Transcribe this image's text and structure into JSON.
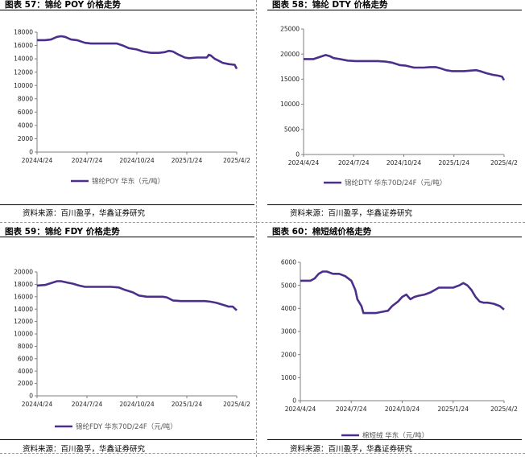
{
  "colors": {
    "series": "#4b2f8a",
    "axis": "#7f7f7f"
  },
  "source_text": "资料来源：百川盈孚，华鑫证券研究",
  "chart_data": [
    {
      "type": "line",
      "title": "图表 57：锦纶 POY 价格走势",
      "series_name": "锦纶POY 华东（元/吨）",
      "x_ticks": [
        "2024/4/24",
        "2024/7/24",
        "2024/10/24",
        "2025/1/24",
        "2025/4/2"
      ],
      "ylim": [
        0,
        18000
      ],
      "y_ticks": [
        0,
        2000,
        4000,
        6000,
        8000,
        10000,
        12000,
        14000,
        16000,
        18000
      ],
      "x": [
        0,
        0.04,
        0.07,
        0.1,
        0.12,
        0.14,
        0.17,
        0.2,
        0.24,
        0.27,
        0.3,
        0.33,
        0.36,
        0.4,
        0.43,
        0.46,
        0.5,
        0.53,
        0.57,
        0.61,
        0.64,
        0.66,
        0.68,
        0.71,
        0.74,
        0.76,
        0.8,
        0.83,
        0.85,
        0.86,
        0.87,
        0.89,
        0.91,
        0.93,
        0.96,
        0.99,
        1.0
      ],
      "values": [
        16800,
        16800,
        16900,
        17300,
        17400,
        17300,
        16900,
        16800,
        16400,
        16300,
        16300,
        16300,
        16300,
        16300,
        16000,
        15600,
        15400,
        15100,
        14900,
        14900,
        15000,
        15200,
        15100,
        14600,
        14200,
        14100,
        14200,
        14200,
        14200,
        14600,
        14500,
        14000,
        13700,
        13400,
        13200,
        13100,
        12500
      ]
    },
    {
      "type": "line",
      "title": "图表 58：锦纶 DTY 价格走势",
      "series_name": "锦纶DTY 华东70D/24F（元/吨）",
      "x_ticks": [
        "2024/4/24",
        "2024/7/24",
        "2024/10/24",
        "2025/1/24",
        "2025/4/2"
      ],
      "ylim": [
        0,
        25000
      ],
      "y_ticks": [
        0,
        5000,
        10000,
        15000,
        20000,
        25000
      ],
      "x": [
        0,
        0.05,
        0.08,
        0.11,
        0.13,
        0.15,
        0.18,
        0.22,
        0.26,
        0.3,
        0.34,
        0.37,
        0.41,
        0.44,
        0.48,
        0.51,
        0.55,
        0.6,
        0.63,
        0.66,
        0.68,
        0.71,
        0.74,
        0.77,
        0.8,
        0.83,
        0.86,
        0.88,
        0.91,
        0.94,
        0.97,
        0.99,
        1.0
      ],
      "values": [
        19000,
        19000,
        19400,
        19800,
        19600,
        19200,
        19000,
        18700,
        18600,
        18600,
        18600,
        18600,
        18500,
        18300,
        17800,
        17700,
        17300,
        17300,
        17400,
        17400,
        17200,
        16800,
        16600,
        16600,
        16600,
        16700,
        16800,
        16600,
        16200,
        15900,
        15700,
        15500,
        14800
      ]
    },
    {
      "type": "line",
      "title": "图表 59：锦纶 FDY 价格走势",
      "series_name": "锦纶FDY 华东70D/24F（元/吨）",
      "x_ticks": [
        "2024/4/24",
        "2024/7/24",
        "2024/10/24",
        "2025/1/24",
        "2025/4/2"
      ],
      "ylim": [
        0,
        20000
      ],
      "y_ticks": [
        0,
        2000,
        4000,
        6000,
        8000,
        10000,
        12000,
        14000,
        16000,
        18000,
        20000
      ],
      "x": [
        0,
        0.04,
        0.07,
        0.1,
        0.12,
        0.15,
        0.18,
        0.21,
        0.24,
        0.28,
        0.33,
        0.37,
        0.41,
        0.44,
        0.48,
        0.51,
        0.55,
        0.6,
        0.63,
        0.65,
        0.68,
        0.72,
        0.76,
        0.8,
        0.84,
        0.87,
        0.9,
        0.93,
        0.96,
        0.98,
        1.0
      ],
      "values": [
        17800,
        17900,
        18200,
        18500,
        18500,
        18300,
        18100,
        17800,
        17600,
        17600,
        17600,
        17600,
        17500,
        17100,
        16700,
        16200,
        16000,
        16000,
        16000,
        15900,
        15400,
        15300,
        15300,
        15300,
        15300,
        15200,
        15000,
        14700,
        14400,
        14400,
        13800
      ]
    },
    {
      "type": "line",
      "title": "图表 60：棉短绒价格走势",
      "series_name": "棉短绒 华东（元/吨）",
      "x_ticks": [
        "2024/4/24",
        "2024/7/24",
        "2024/10/24",
        "2025/1/24",
        "2025/4/2"
      ],
      "ylim": [
        0,
        6000
      ],
      "y_ticks": [
        0,
        1000,
        2000,
        3000,
        4000,
        5000,
        6000
      ],
      "x": [
        0,
        0.05,
        0.07,
        0.09,
        0.11,
        0.13,
        0.16,
        0.19,
        0.22,
        0.25,
        0.27,
        0.28,
        0.3,
        0.31,
        0.33,
        0.37,
        0.4,
        0.43,
        0.45,
        0.48,
        0.5,
        0.52,
        0.54,
        0.56,
        0.58,
        0.61,
        0.64,
        0.66,
        0.68,
        0.71,
        0.75,
        0.78,
        0.8,
        0.82,
        0.84,
        0.86,
        0.88,
        0.9,
        0.92,
        0.95,
        0.98,
        1.0
      ],
      "values": [
        5200,
        5200,
        5300,
        5500,
        5600,
        5600,
        5500,
        5500,
        5400,
        5200,
        4800,
        4400,
        4100,
        3800,
        3800,
        3800,
        3850,
        3900,
        4100,
        4300,
        4500,
        4600,
        4400,
        4500,
        4550,
        4600,
        4700,
        4800,
        4900,
        4900,
        4900,
        5000,
        5100,
        5000,
        4800,
        4500,
        4300,
        4250,
        4250,
        4200,
        4100,
        3950
      ]
    }
  ]
}
